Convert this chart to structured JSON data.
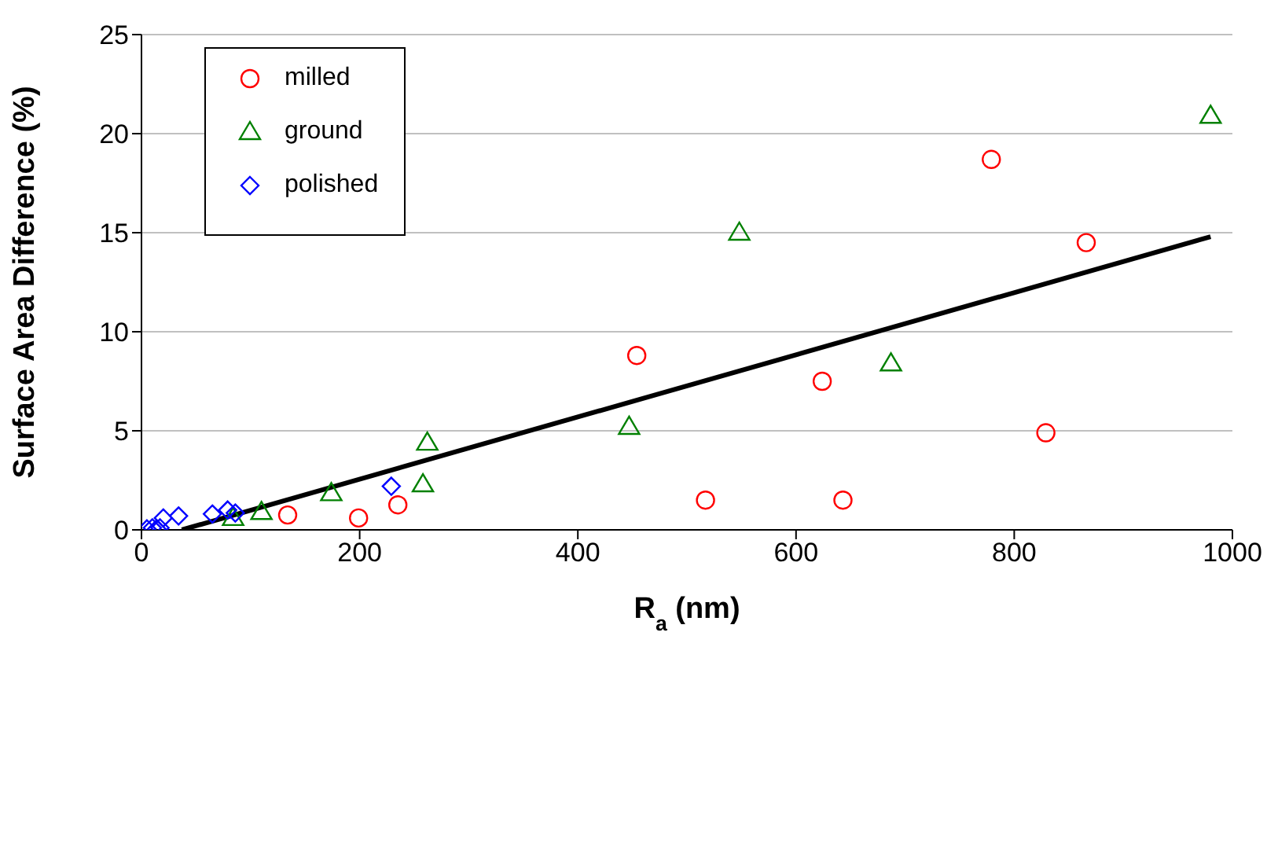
{
  "chart_data": {
    "type": "scatter",
    "xlabel": "R$_{a}$ (nm)",
    "ylabel": "Surface Area Difference (%)",
    "xlim": [
      0,
      1000
    ],
    "xticks": [
      0,
      200,
      400,
      600,
      800,
      1000
    ],
    "ylim": [
      0,
      25
    ],
    "yticks": [
      0,
      5,
      10,
      15,
      20,
      25
    ],
    "grid": "y",
    "legend": "top left",
    "series": [
      {
        "name": "milled",
        "color": "#ff0000",
        "marker": "circle",
        "x": [
          134,
          199,
          235,
          454,
          517,
          624,
          643,
          779,
          829,
          866
        ],
        "values": [
          0.75,
          0.6,
          1.26,
          8.8,
          1.5,
          7.5,
          1.5,
          18.7,
          4.9,
          14.5
        ]
      },
      {
        "name": "ground",
        "color": "#008000",
        "marker": "triangle",
        "x": [
          84,
          110,
          174,
          258,
          262,
          447,
          548,
          687,
          980
        ],
        "values": [
          0.6,
          0.9,
          1.85,
          2.3,
          4.4,
          5.2,
          15.0,
          8.4,
          20.9
        ]
      },
      {
        "name": "polished",
        "color": "#0000ff",
        "marker": "diamond",
        "x": [
          5,
          10,
          14,
          17,
          20,
          34,
          65,
          79,
          86,
          229
        ],
        "values": [
          0.05,
          0.1,
          0.05,
          0.1,
          0.6,
          0.7,
          0.8,
          1.0,
          0.85,
          2.2
        ]
      },
      {
        "type": "line",
        "color": "#000000",
        "marker": "none",
        "x": [
          37,
          980
        ],
        "values": [
          0,
          14.8
        ]
      }
    ]
  }
}
